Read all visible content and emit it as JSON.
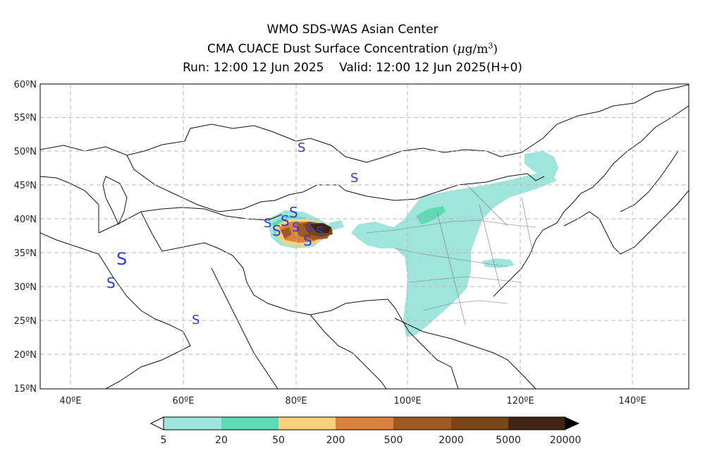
{
  "titles": {
    "line1": "WMO SDS-WAS Asian Center",
    "line2_text": "CMA CUACE Dust Surface Concentration",
    "line2_unit_prefix": "(",
    "line2_unit_mu": "μ",
    "line2_unit_rest": "g/m",
    "line2_unit_exp": "3",
    "line2_unit_suffix": ")",
    "line3": "Run: 12:00 12 Jun 2025    Valid: 12:00 12 Jun 2025(H+0)"
  },
  "map": {
    "lat_labels": [
      "60ºN",
      "55ºN",
      "50ºN",
      "45ºN",
      "40ºN",
      "35ºN",
      "30ºN",
      "25ºN",
      "20ºN",
      "15ºN"
    ],
    "lon_labels": [
      "40ºE",
      "60ºE",
      "80ºE",
      "100ºE",
      "120ºE",
      "140ºE"
    ],
    "weather_symbol": "S",
    "grid": "dashed",
    "colors": {
      "c5": "#9fe5dc",
      "c20": "#5fd9b6",
      "c50": "#f7d27a",
      "c200": "#d9813e",
      "c500": "#9e5a22",
      "c2000": "#7a4518",
      "c5000": "#3d2413",
      "symbol": "#2b3fd1"
    }
  },
  "colorbar": {
    "labels": [
      "5",
      "20",
      "50",
      "200",
      "500",
      "2000",
      "5000",
      "20000"
    ],
    "colors": [
      "#9fe5dc",
      "#5fd9b6",
      "#f7d27a",
      "#d9813e",
      "#9e5a22",
      "#7a4518",
      "#3d2413"
    ]
  }
}
